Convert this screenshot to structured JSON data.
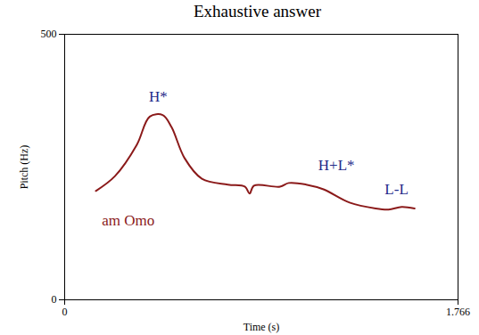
{
  "chart_data": {
    "type": "line",
    "title": "Exhaustive answer",
    "x_label": "Time (s)",
    "y_label": "Pitch (Hz)",
    "xlim": [
      0,
      1.766
    ],
    "ylim": [
      0,
      500
    ],
    "xticks": [
      0,
      1.766
    ],
    "yticks": [
      0,
      500
    ],
    "x": [
      0.14,
      0.226,
      0.324,
      0.382,
      0.44,
      0.48,
      0.538,
      0.616,
      0.733,
      0.81,
      0.83,
      0.85,
      0.967,
      1.006,
      1.084,
      1.162,
      1.279,
      1.396,
      1.454,
      1.513,
      1.571
    ],
    "values": [
      205,
      233,
      292,
      345,
      348,
      325,
      267,
      228,
      217,
      213,
      200,
      215,
      213,
      220,
      217,
      208,
      183,
      172,
      170,
      175,
      172
    ],
    "color": "#8b1a1a",
    "annotations": [
      {
        "text": "H*",
        "x": 0.42,
        "y": 383,
        "color": "#1f2a8a"
      },
      {
        "text": "H+L*",
        "x": 1.22,
        "y": 253,
        "color": "#1f2a8a"
      },
      {
        "text": "L-L",
        "x": 1.49,
        "y": 208,
        "color": "#1f2a8a"
      },
      {
        "text": "am Omo",
        "x": 0.285,
        "y": 150,
        "color": "#8b1a1a"
      }
    ]
  }
}
